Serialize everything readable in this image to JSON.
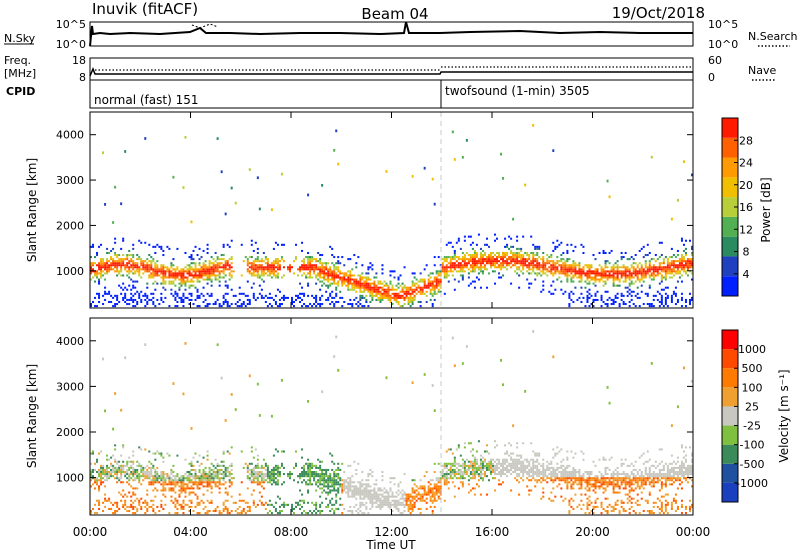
{
  "chart_data": [
    {
      "type": "line",
      "panel": "header",
      "title_left": "Inuvik (fitACF)",
      "title_center": "Beam 04",
      "title_right": "19/Oct/2018",
      "nsky": {
        "label": "N.Sky",
        "right_label": "N.Search",
        "ticks_left": [
          "10^5",
          "10^0"
        ],
        "ticks_right": [
          "10^5",
          "10^0"
        ]
      },
      "freq": {
        "label_line1": "Freq.",
        "label_line2": "[MHz]",
        "right_label": "Nave",
        "ticks_left": [
          "18",
          "8"
        ],
        "ticks_right": [
          "60",
          "0"
        ]
      },
      "cpid": {
        "label": "CPID",
        "modes": [
          {
            "name": "normal (fast) 151",
            "start_hour": 0
          },
          {
            "name": "twofsound (1-min) 3505",
            "start_hour": 14
          }
        ]
      }
    },
    {
      "type": "heatmap",
      "panel": "power",
      "ylabel": "Slant Range [km]",
      "ylim": [
        180,
        4500
      ],
      "yticks": [
        1000,
        2000,
        3000,
        4000
      ],
      "colorbar": {
        "label": "Power [dB]",
        "ticks": [
          "28",
          "24",
          "20",
          "16",
          "12",
          "8",
          "4"
        ],
        "colors": [
          "#0020ff",
          "#2040c0",
          "#2a8a60",
          "#52b052",
          "#b8cf3a",
          "#f0c000",
          "#ff9a00",
          "#ff6000",
          "#ff1a00"
        ]
      }
    },
    {
      "type": "heatmap",
      "panel": "velocity",
      "ylabel": "Slant Range [km]",
      "xlabel": "Time UT",
      "xlim": [
        0,
        24
      ],
      "xticks": [
        "00:00",
        "04:00",
        "08:00",
        "12:00",
        "16:00",
        "20:00",
        "00:00"
      ],
      "ylim": [
        180,
        4500
      ],
      "yticks": [
        1000,
        2000,
        3000,
        4000
      ],
      "colorbar": {
        "label": "Velocity [m s⁻¹]",
        "ticks": [
          "1000",
          "500",
          "100",
          "25",
          "-25",
          "-100",
          "-500",
          "-1000"
        ],
        "colors": [
          "#1a40c0",
          "#2050a0",
          "#3a8a5a",
          "#80c040",
          "#c8c8c0",
          "#f0a030",
          "#ff7a00",
          "#ff4a00",
          "#ff0000"
        ]
      }
    }
  ]
}
